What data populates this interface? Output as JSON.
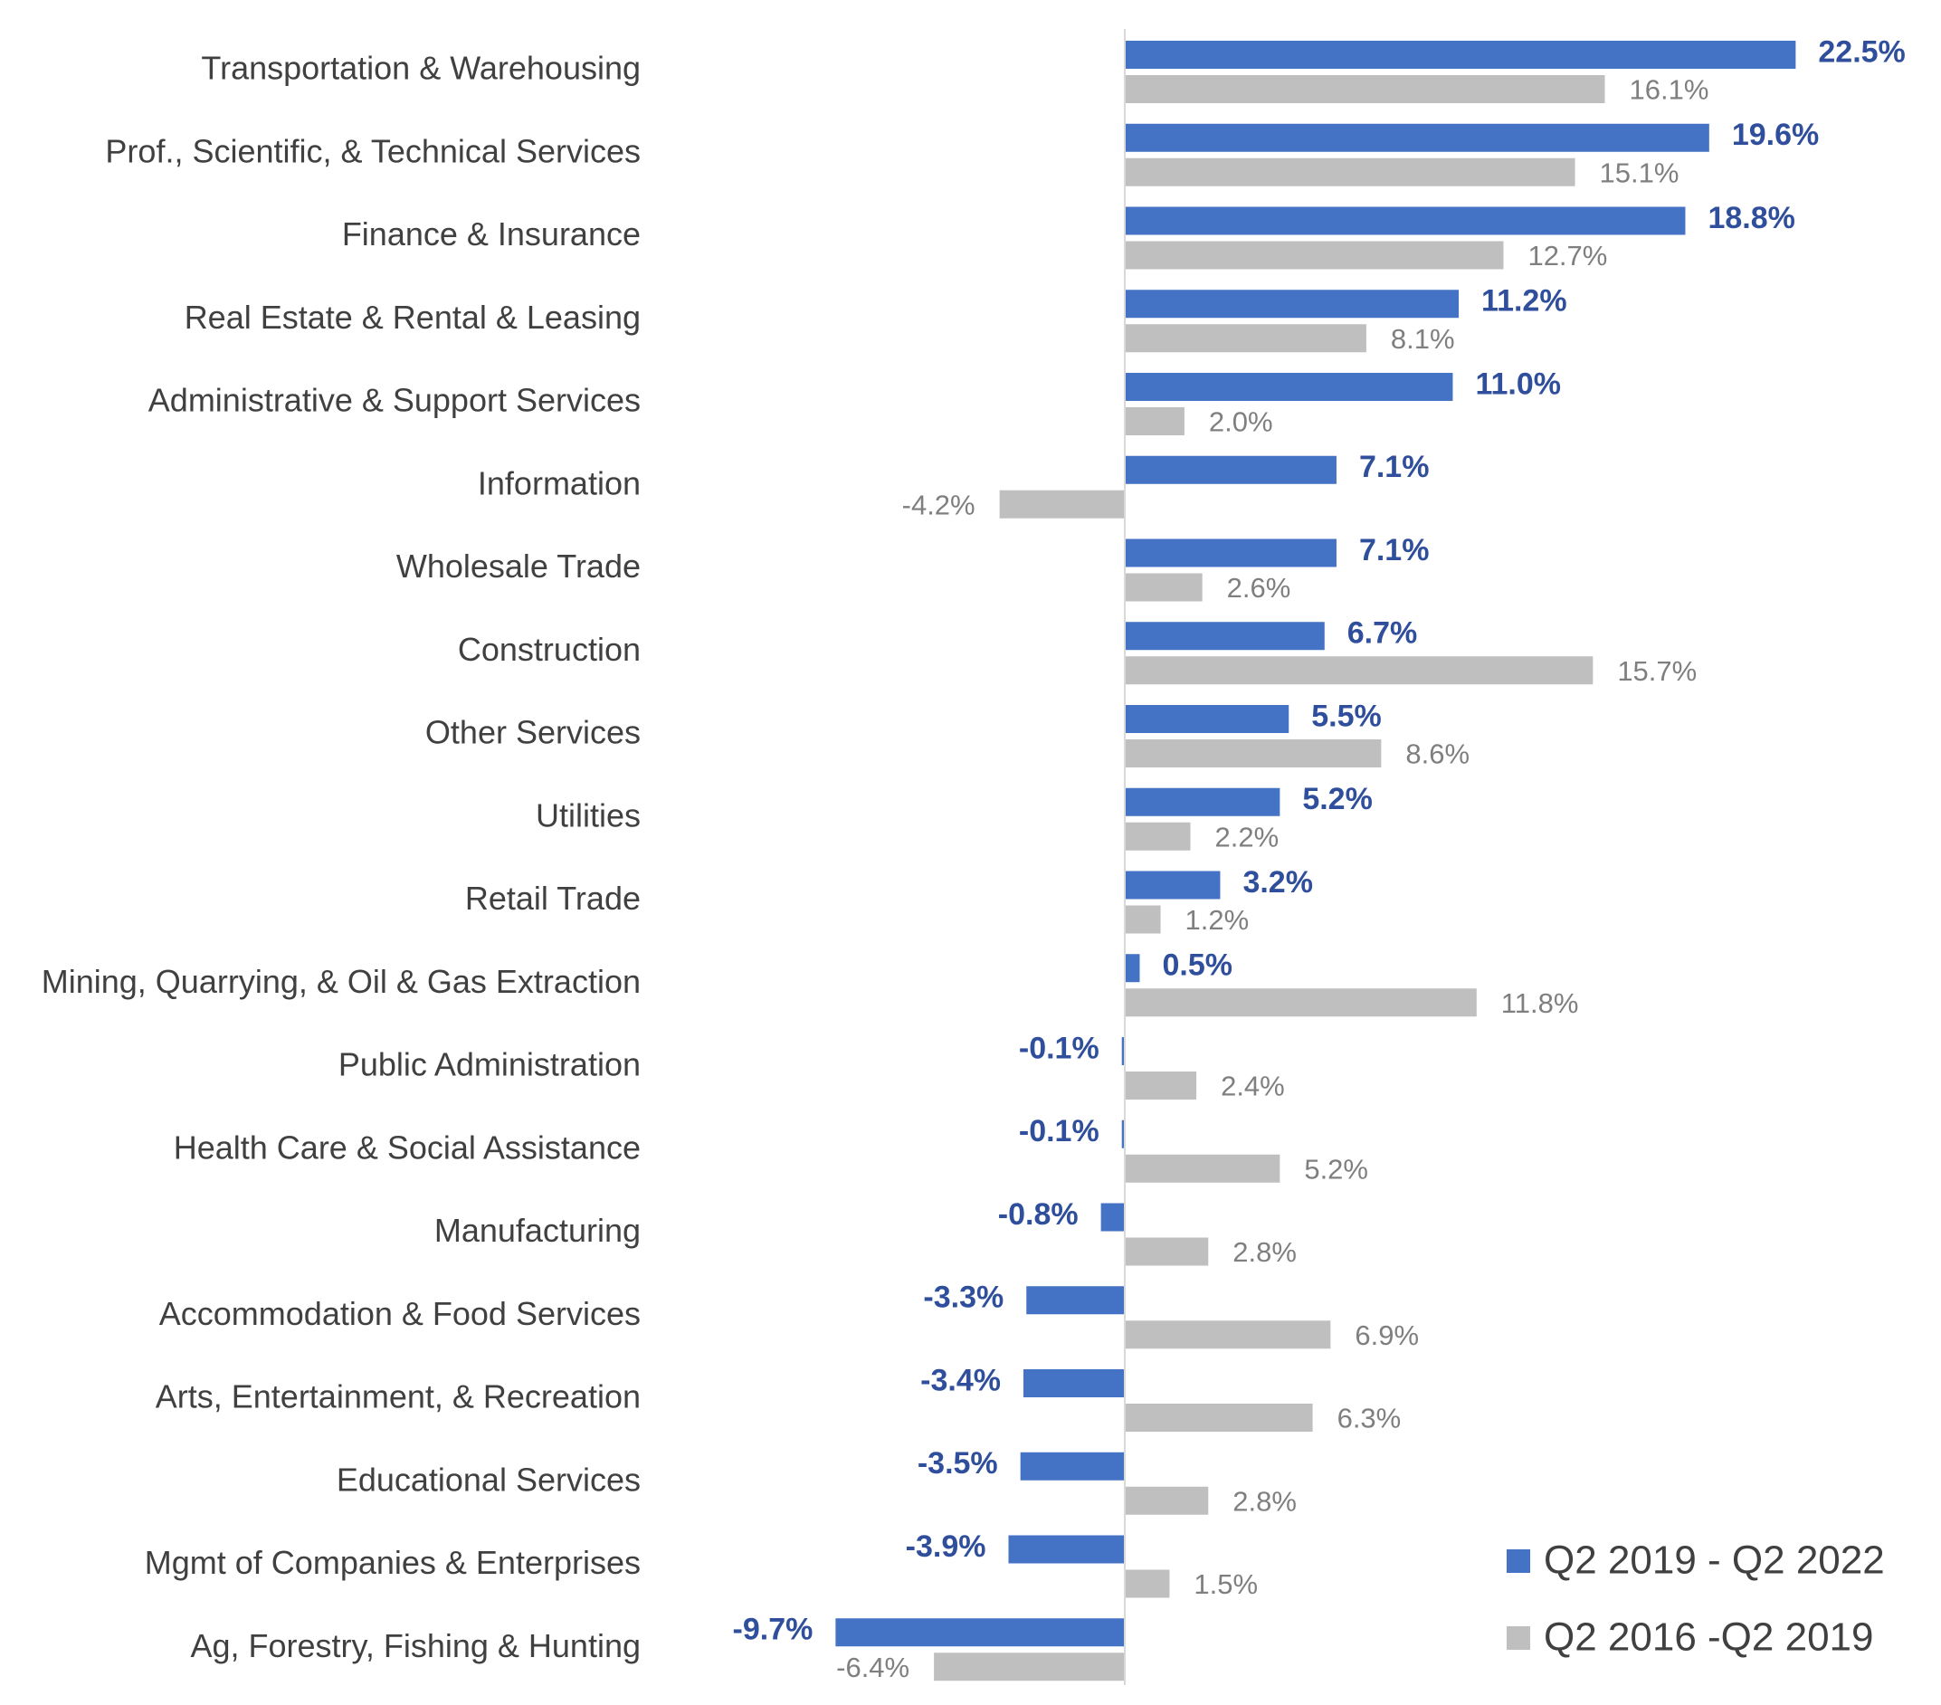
{
  "chart_data": {
    "type": "bar",
    "orientation": "horizontal",
    "title": "",
    "xlabel": "",
    "ylabel": "",
    "grid": false,
    "legend_position": "bottom-right",
    "categories": [
      "Transportation & Warehousing",
      "Prof., Scientific, & Technical Services",
      "Finance & Insurance",
      "Real Estate & Rental & Leasing",
      "Administrative & Support Services",
      "Information",
      "Wholesale Trade",
      "Construction",
      "Other Services",
      "Utilities",
      "Retail Trade",
      "Mining, Quarrying, & Oil & Gas Extraction",
      "Public Administration",
      "Health Care & Social Assistance",
      "Manufacturing",
      "Accommodation & Food Services",
      "Arts, Entertainment, & Recreation",
      "Educational Services",
      "Mgmt of Companies & Enterprises",
      "Ag, Forestry, Fishing & Hunting"
    ],
    "series": [
      {
        "name": "Q2 2019 - Q2 2022",
        "color": "#4472C4",
        "label_color": "#2F4E9B",
        "values": [
          22.5,
          19.6,
          18.8,
          11.2,
          11.0,
          7.1,
          7.1,
          6.7,
          5.5,
          5.2,
          3.2,
          0.5,
          -0.1,
          -0.1,
          -0.8,
          -3.3,
          -3.4,
          -3.5,
          -3.9,
          -9.7
        ],
        "labels": [
          "22.5%",
          "19.6%",
          "18.8%",
          "11.2%",
          "11.0%",
          "7.1%",
          "7.1%",
          "6.7%",
          "5.5%",
          "5.2%",
          "3.2%",
          "0.5%",
          "-0.1%",
          "-0.1%",
          "-0.8%",
          "-3.3%",
          "-3.4%",
          "-3.5%",
          "-3.9%",
          "-9.7%"
        ]
      },
      {
        "name": "Q2 2016 -Q2 2019",
        "color": "#BFBFBF",
        "label_color": "#7F7F7F",
        "values": [
          16.1,
          15.1,
          12.7,
          8.1,
          2.0,
          -4.2,
          2.6,
          15.7,
          8.6,
          2.2,
          1.2,
          11.8,
          2.4,
          5.2,
          2.8,
          6.9,
          6.3,
          2.8,
          1.5,
          -6.4
        ],
        "labels": [
          "16.1%",
          "15.1%",
          "12.7%",
          "8.1%",
          "2.0%",
          "-4.2%",
          "2.6%",
          "15.7%",
          "8.6%",
          "2.2%",
          "1.2%",
          "11.8%",
          "2.4%",
          "5.2%",
          "2.8%",
          "6.9%",
          "6.3%",
          "2.8%",
          "1.5%",
          "-6.4%"
        ]
      }
    ],
    "xlim": [
      -10.0,
      23.0
    ]
  }
}
